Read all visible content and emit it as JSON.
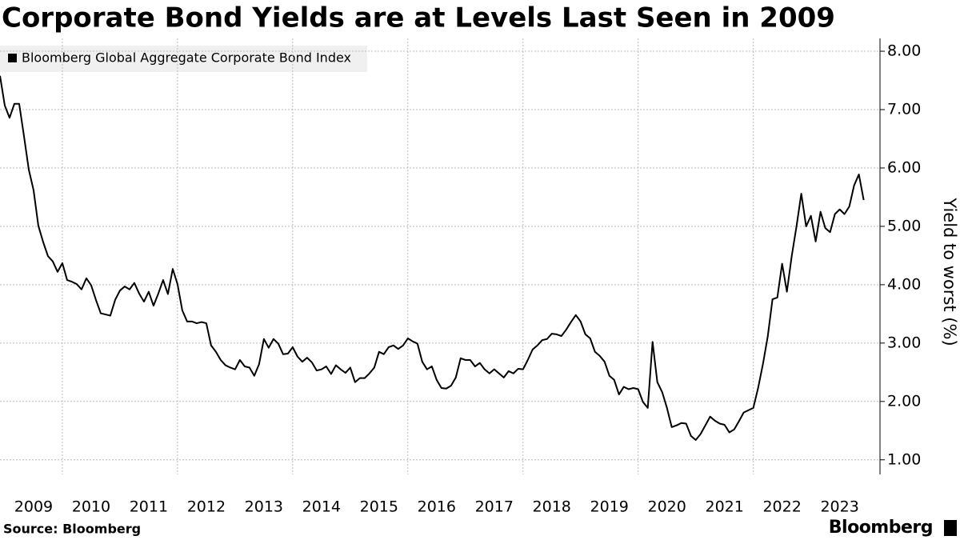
{
  "chart_data": {
    "type": "line",
    "title": "Corporate Bond Yields are at Levels Last Seen in 2009",
    "y_label": "Yield to worst (%)",
    "source": "Source: Bloomberg",
    "brand": "Bloomberg",
    "legend": "top-left",
    "grid": true,
    "xlim": [
      2008.917,
      2024.2
    ],
    "ylim": [
      0.75,
      8.22
    ],
    "xticks": [
      {
        "value": 2009.5,
        "label": "2009"
      },
      {
        "value": 2010.5,
        "label": "2010"
      },
      {
        "value": 2011.5,
        "label": "2011"
      },
      {
        "value": 2012.5,
        "label": "2012"
      },
      {
        "value": 2013.5,
        "label": "2013"
      },
      {
        "value": 2014.5,
        "label": "2014"
      },
      {
        "value": 2015.5,
        "label": "2015"
      },
      {
        "value": 2016.5,
        "label": "2016"
      },
      {
        "value": 2017.5,
        "label": "2017"
      },
      {
        "value": 2018.5,
        "label": "2018"
      },
      {
        "value": 2019.5,
        "label": "2019"
      },
      {
        "value": 2020.5,
        "label": "2020"
      },
      {
        "value": 2021.5,
        "label": "2021"
      },
      {
        "value": 2022.5,
        "label": "2022"
      },
      {
        "value": 2023.5,
        "label": "2023"
      }
    ],
    "x_grid": [
      2010,
      2012,
      2014,
      2016,
      2018,
      2020,
      2022
    ],
    "yticks": [
      {
        "value": 1,
        "label": "1.00"
      },
      {
        "value": 2,
        "label": "2.00"
      },
      {
        "value": 3,
        "label": "3.00"
      },
      {
        "value": 4,
        "label": "4.00"
      },
      {
        "value": 5,
        "label": "5.00"
      },
      {
        "value": 6,
        "label": "6.00"
      },
      {
        "value": 7,
        "label": "7.00"
      },
      {
        "value": 8,
        "label": "8.00"
      }
    ],
    "x": [
      2008.917,
      2009,
      2009.083,
      2009.167,
      2009.25,
      2009.333,
      2009.417,
      2009.5,
      2009.583,
      2009.667,
      2009.75,
      2009.833,
      2009.917,
      2010,
      2010.083,
      2010.167,
      2010.25,
      2010.333,
      2010.417,
      2010.5,
      2010.583,
      2010.667,
      2010.75,
      2010.833,
      2010.917,
      2011,
      2011.083,
      2011.167,
      2011.25,
      2011.333,
      2011.417,
      2011.5,
      2011.583,
      2011.667,
      2011.75,
      2011.833,
      2011.917,
      2012,
      2012.083,
      2012.167,
      2012.25,
      2012.333,
      2012.417,
      2012.5,
      2012.583,
      2012.667,
      2012.75,
      2012.833,
      2012.917,
      2013,
      2013.083,
      2013.167,
      2013.25,
      2013.333,
      2013.417,
      2013.5,
      2013.583,
      2013.667,
      2013.75,
      2013.833,
      2013.917,
      2014,
      2014.083,
      2014.167,
      2014.25,
      2014.333,
      2014.417,
      2014.5,
      2014.583,
      2014.667,
      2014.75,
      2014.833,
      2014.917,
      2015,
      2015.083,
      2015.167,
      2015.25,
      2015.333,
      2015.417,
      2015.5,
      2015.583,
      2015.667,
      2015.75,
      2015.833,
      2015.917,
      2016,
      2016.083,
      2016.167,
      2016.25,
      2016.333,
      2016.417,
      2016.5,
      2016.583,
      2016.667,
      2016.75,
      2016.833,
      2016.917,
      2017,
      2017.083,
      2017.167,
      2017.25,
      2017.333,
      2017.417,
      2017.5,
      2017.583,
      2017.667,
      2017.75,
      2017.833,
      2017.917,
      2018,
      2018.083,
      2018.167,
      2018.25,
      2018.333,
      2018.417,
      2018.5,
      2018.583,
      2018.667,
      2018.75,
      2018.833,
      2018.917,
      2019,
      2019.083,
      2019.167,
      2019.25,
      2019.333,
      2019.417,
      2019.5,
      2019.583,
      2019.667,
      2019.75,
      2019.833,
      2019.917,
      2020,
      2020.083,
      2020.167,
      2020.25,
      2020.333,
      2020.417,
      2020.5,
      2020.583,
      2020.667,
      2020.75,
      2020.833,
      2020.917,
      2021,
      2021.083,
      2021.167,
      2021.25,
      2021.333,
      2021.417,
      2021.5,
      2021.583,
      2021.667,
      2021.75,
      2021.833,
      2021.917,
      2022,
      2022.083,
      2022.167,
      2022.25,
      2022.333,
      2022.417,
      2022.5,
      2022.583,
      2022.667,
      2022.75,
      2022.833,
      2022.917,
      2023,
      2023.083,
      2023.167,
      2023.25,
      2023.333,
      2023.417,
      2023.5,
      2023.583,
      2023.667,
      2023.75,
      2023.833,
      2023.917
    ],
    "series": [
      {
        "name": "Bloomberg Global Aggregate Corporate Bond Index",
        "color": "#000000",
        "values": [
          7.58,
          7.07,
          6.86,
          7.1,
          7.1,
          6.55,
          5.97,
          5.62,
          5.01,
          4.73,
          4.49,
          4.4,
          4.22,
          4.37,
          4.08,
          4.05,
          4.01,
          3.92,
          4.11,
          3.99,
          3.74,
          3.51,
          3.49,
          3.47,
          3.74,
          3.9,
          3.97,
          3.92,
          4.03,
          3.85,
          3.71,
          3.88,
          3.64,
          3.85,
          4.08,
          3.84,
          4.27,
          4.01,
          3.56,
          3.37,
          3.37,
          3.34,
          3.36,
          3.34,
          2.96,
          2.85,
          2.71,
          2.62,
          2.58,
          2.55,
          2.71,
          2.6,
          2.58,
          2.44,
          2.64,
          3.07,
          2.92,
          3.07,
          2.99,
          2.81,
          2.82,
          2.93,
          2.77,
          2.68,
          2.75,
          2.67,
          2.53,
          2.55,
          2.6,
          2.47,
          2.62,
          2.55,
          2.49,
          2.58,
          2.33,
          2.4,
          2.4,
          2.48,
          2.58,
          2.85,
          2.81,
          2.93,
          2.96,
          2.9,
          2.96,
          3.08,
          3.03,
          2.99,
          2.68,
          2.55,
          2.6,
          2.37,
          2.23,
          2.22,
          2.27,
          2.41,
          2.74,
          2.71,
          2.71,
          2.6,
          2.66,
          2.55,
          2.48,
          2.55,
          2.48,
          2.41,
          2.52,
          2.48,
          2.56,
          2.55,
          2.71,
          2.89,
          2.96,
          3.05,
          3.07,
          3.16,
          3.15,
          3.12,
          3.23,
          3.36,
          3.48,
          3.37,
          3.15,
          3.08,
          2.85,
          2.78,
          2.68,
          2.44,
          2.37,
          2.12,
          2.25,
          2.21,
          2.23,
          2.21,
          1.99,
          1.89,
          3.02,
          2.33,
          2.16,
          1.89,
          1.56,
          1.59,
          1.63,
          1.62,
          1.41,
          1.34,
          1.44,
          1.59,
          1.74,
          1.67,
          1.62,
          1.6,
          1.47,
          1.52,
          1.66,
          1.81,
          1.85,
          1.89,
          2.23,
          2.64,
          3.11,
          3.75,
          3.78,
          4.36,
          3.88,
          4.49,
          5.0,
          5.56,
          5.0,
          5.18,
          4.74,
          5.25,
          4.97,
          4.9,
          5.21,
          5.29,
          5.21,
          5.34,
          5.7,
          5.89,
          5.45
        ]
      }
    ]
  }
}
